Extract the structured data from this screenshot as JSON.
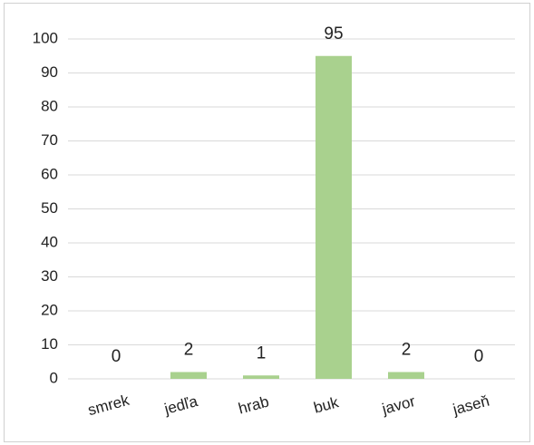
{
  "chart_data": {
    "type": "bar",
    "categories": [
      "smrek",
      "jedľa",
      "hrab",
      "buk",
      "javor",
      "jaseň"
    ],
    "values": [
      0,
      2,
      1,
      95,
      2,
      0
    ],
    "color": "#a9d18e",
    "ylim": [
      0,
      100
    ],
    "yticks": [
      0,
      10,
      20,
      30,
      40,
      50,
      60,
      70,
      80,
      90,
      100
    ],
    "grid": true,
    "data_labels": true
  }
}
